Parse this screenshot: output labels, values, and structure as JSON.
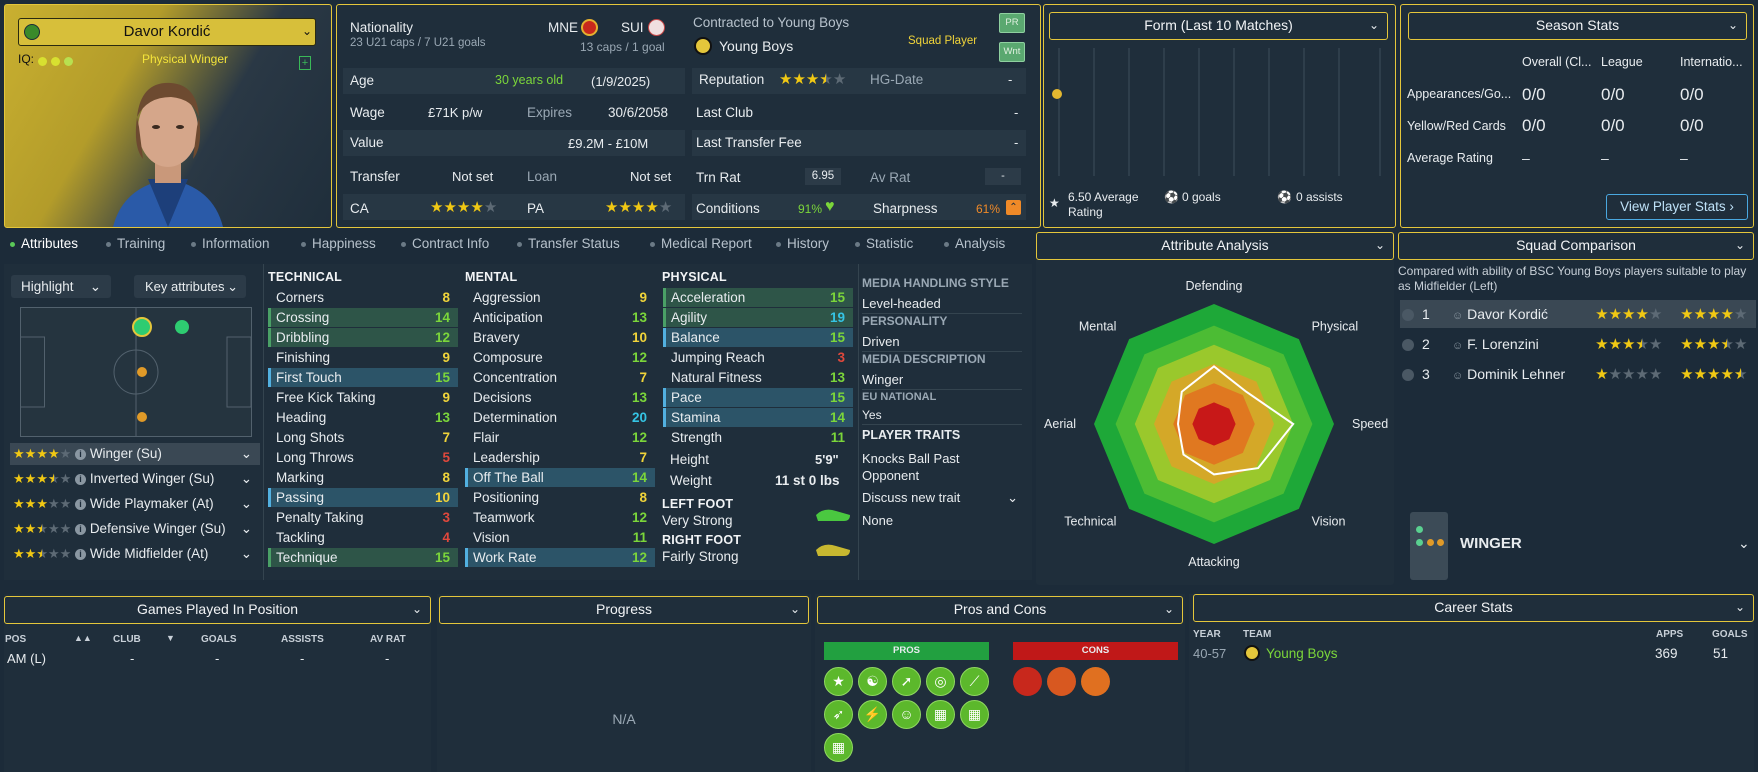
{
  "player": {
    "name": "Davor Kordić",
    "iq_label": "IQ:",
    "role_title": "Physical Winger",
    "nationality_label": "Nationality",
    "nation1": "MNE",
    "nation1_caps": "23 U21 caps / 7 U21 goals",
    "nation2": "SUI",
    "nation2_caps": "13 caps / 1 goal",
    "contract_label": "Contracted to Young Boys",
    "club": "Young Boys",
    "squad_status": "Squad Player",
    "pr_badge": "PR",
    "wnt_badge": "Wnt"
  },
  "info": {
    "age_label": "Age",
    "age_value": "30 years old",
    "age_date": "(1/9/2025)",
    "wage_label": "Wage",
    "wage_value": "£71K p/w",
    "expires_label": "Expires",
    "expires_value": "30/6/2058",
    "value_label": "Value",
    "value_value": "£9.2M - £10M",
    "transfer_label": "Transfer",
    "transfer_value": "Not set",
    "loan_label": "Loan",
    "loan_value": "Not set",
    "ca_label": "CA",
    "pa_label": "PA",
    "ca_stars": 4,
    "pa_stars": 4,
    "reputation_label": "Reputation",
    "reputation_stars": 3.5,
    "hgdate_label": "HG-Date",
    "hgdate_value": "-",
    "lastclub_label": "Last Club",
    "lastclub_value": "-",
    "lastfee_label": "Last Transfer Fee",
    "lastfee_value": "-",
    "trnrat_label": "Trn Rat",
    "trnrat_value": "6.95",
    "avrat_label": "Av Rat",
    "avrat_value": "-",
    "conditions_label": "Conditions",
    "conditions_value": "91%",
    "sharpness_label": "Sharpness",
    "sharpness_value": "61%"
  },
  "form": {
    "title": "Form (Last 10 Matches)",
    "avg_rating": "6.50 Average Rating",
    "goals": "0 goals",
    "assists": "0 assists"
  },
  "season": {
    "title": "Season Stats",
    "col1": "Overall (Cl...",
    "col2": "League",
    "col3": "Internatio...",
    "rows": [
      {
        "label": "Appearances/Go...",
        "v1": "0/0",
        "v2": "0/0",
        "v3": "0/0"
      },
      {
        "label": "Yellow/Red Cards",
        "v1": "0/0",
        "v2": "0/0",
        "v3": "0/0"
      },
      {
        "label": "Average Rating",
        "v1": "–",
        "v2": "–",
        "v3": "–"
      }
    ],
    "view_button": "View Player Stats"
  },
  "tabs": [
    "Attributes",
    "Training",
    "Information",
    "Happiness",
    "Contract Info",
    "Transfer Status",
    "Medical Report",
    "History",
    "Statistic",
    "Analysis"
  ],
  "controls": {
    "highlight": "Highlight",
    "key_attributes": "Key attributes"
  },
  "roles": [
    {
      "stars": 4,
      "name": "Winger (Su)"
    },
    {
      "stars": 3.5,
      "name": "Inverted Winger (Su)"
    },
    {
      "stars": 3,
      "name": "Wide Playmaker (At)"
    },
    {
      "stars": 2.5,
      "name": "Defensive Winger (Su)"
    },
    {
      "stars": 2.5,
      "name": "Wide Midfielder (At)"
    }
  ],
  "technical": {
    "title": "TECHNICAL",
    "items": [
      {
        "name": "Corners",
        "value": "8"
      },
      {
        "name": "Crossing",
        "value": "14"
      },
      {
        "name": "Dribbling",
        "value": "12"
      },
      {
        "name": "Finishing",
        "value": "9"
      },
      {
        "name": "First Touch",
        "value": "15"
      },
      {
        "name": "Free Kick Taking",
        "value": "9"
      },
      {
        "name": "Heading",
        "value": "13"
      },
      {
        "name": "Long Shots",
        "value": "7"
      },
      {
        "name": "Long Throws",
        "value": "5"
      },
      {
        "name": "Marking",
        "value": "8"
      },
      {
        "name": "Passing",
        "value": "10"
      },
      {
        "name": "Penalty Taking",
        "value": "3"
      },
      {
        "name": "Tackling",
        "value": "4"
      },
      {
        "name": "Technique",
        "value": "15"
      }
    ]
  },
  "mental": {
    "title": "MENTAL",
    "items": [
      {
        "name": "Aggression",
        "value": "9"
      },
      {
        "name": "Anticipation",
        "value": "13"
      },
      {
        "name": "Bravery",
        "value": "10"
      },
      {
        "name": "Composure",
        "value": "12"
      },
      {
        "name": "Concentration",
        "value": "7"
      },
      {
        "name": "Decisions",
        "value": "13"
      },
      {
        "name": "Determination",
        "value": "20"
      },
      {
        "name": "Flair",
        "value": "12"
      },
      {
        "name": "Leadership",
        "value": "7"
      },
      {
        "name": "Off The Ball",
        "value": "14"
      },
      {
        "name": "Positioning",
        "value": "8"
      },
      {
        "name": "Teamwork",
        "value": "12"
      },
      {
        "name": "Vision",
        "value": "11"
      },
      {
        "name": "Work Rate",
        "value": "12"
      }
    ]
  },
  "physical": {
    "title": "PHYSICAL",
    "items": [
      {
        "name": "Acceleration",
        "value": "15"
      },
      {
        "name": "Agility",
        "value": "19"
      },
      {
        "name": "Balance",
        "value": "15"
      },
      {
        "name": "Jumping Reach",
        "value": "3"
      },
      {
        "name": "Natural Fitness",
        "value": "13"
      },
      {
        "name": "Pace",
        "value": "15"
      },
      {
        "name": "Stamina",
        "value": "14"
      },
      {
        "name": "Strength",
        "value": "11"
      }
    ],
    "height_label": "Height",
    "height_value": "5'9\"",
    "weight_label": "Weight",
    "weight_value": "11 st 0 lbs",
    "left_foot_label": "LEFT FOOT",
    "left_foot_value": "Very Strong",
    "right_foot_label": "RIGHT FOOT",
    "right_foot_value": "Fairly Strong"
  },
  "media": {
    "style_label": "MEDIA HANDLING STYLE",
    "style_value": "Level-headed",
    "personality_label": "PERSONALITY",
    "personality_value": "Driven",
    "desc_label": "MEDIA DESCRIPTION",
    "desc_value": "Winger",
    "eu_label": "EU NATIONAL",
    "eu_value": "Yes",
    "traits_label": "PLAYER TRAITS",
    "trait1": "Knocks Ball Past Opponent",
    "discuss": "Discuss new trait",
    "none": "None"
  },
  "analysis": {
    "title": "Attribute Analysis",
    "axes": [
      "Defending",
      "Physical",
      "Speed",
      "Vision",
      "Attacking",
      "Technical",
      "Aerial",
      "Mental"
    ]
  },
  "squad": {
    "title": "Squad Comparison",
    "desc": "Compared with ability of BSC Young Boys players suitable to play as Midfielder (Left)",
    "rows": [
      {
        "rank": "1",
        "name": "Davor Kordić",
        "ca": 4,
        "pa": 4
      },
      {
        "rank": "2",
        "name": "F. Lorenzini",
        "ca": 3.5,
        "pa": 3.5
      },
      {
        "rank": "3",
        "name": "Dominik Lehner",
        "ca": 1,
        "pa": 4.5
      }
    ],
    "position_label": "WINGER"
  },
  "games": {
    "title": "Games Played In Position",
    "cols": [
      "POS",
      "CLUB",
      "GOALS",
      "ASSISTS",
      "AV RAT"
    ],
    "row": [
      "AM (L)",
      "-",
      "-",
      "-",
      "-"
    ]
  },
  "progress": {
    "title": "Progress",
    "na": "N/A"
  },
  "proscons": {
    "title": "Pros and Cons",
    "pros": "PROS",
    "cons": "CONS"
  },
  "career": {
    "title": "Career Stats",
    "cols": [
      "YEAR",
      "TEAM",
      "APPS",
      "GOALS"
    ],
    "rows": [
      {
        "year": "40-57",
        "team": "Young Boys",
        "apps": "369",
        "goals": "51"
      }
    ]
  },
  "colors": {
    "accent": "#e4c63b",
    "bg": "#1c2b39",
    "good": "#7bd63a",
    "ok": "#f0d43a",
    "bad": "#e0483c",
    "great": "#35c4e4"
  }
}
